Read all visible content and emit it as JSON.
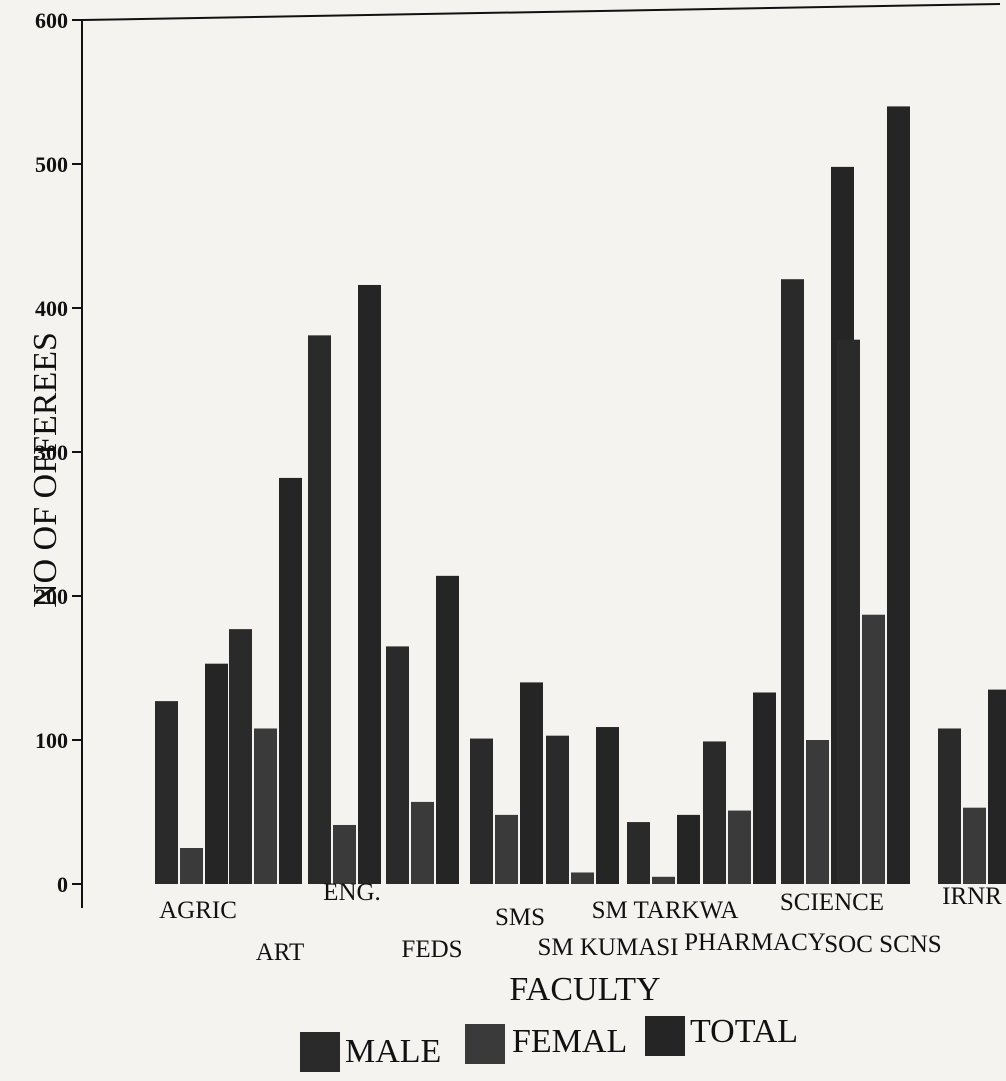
{
  "chart_data": {
    "type": "bar",
    "xlabel": "FACULTY",
    "ylabel": "NO OF OFFEREES",
    "ylim": [
      0,
      600
    ],
    "yticks": [
      0,
      100,
      200,
      300,
      400,
      500,
      600
    ],
    "grid": false,
    "legend_position": "bottom",
    "categories": [
      "AGRIC",
      "ART",
      "ENG.",
      "FEDS",
      "SMS",
      "SM KUMASI",
      "SM TARKWA",
      "PHARMACY",
      "SCIENCE",
      "SOC SCNS",
      "IRNR"
    ],
    "tick_labels": [
      "AGRIC",
      "ART",
      "ENG.",
      "FEDS",
      "SMS",
      "SM KUMASI",
      "SM TARKWA",
      "PHARMACY",
      "SCIENCE",
      "SOC SCNS",
      "IRNR"
    ],
    "series": [
      {
        "name": "MALE",
        "color": "#2a2a2a",
        "values": [
          127,
          177,
          381,
          165,
          101,
          103,
          43,
          99,
          420,
          378,
          108
        ]
      },
      {
        "name": "FEMAL",
        "color": "#3a3a3a",
        "values": [
          25,
          108,
          41,
          57,
          48,
          8,
          5,
          51,
          100,
          187,
          53
        ]
      },
      {
        "name": "TOTAL",
        "color": "#252525",
        "values": [
          153,
          282,
          416,
          214,
          140,
          109,
          48,
          133,
          498,
          540,
          135
        ]
      }
    ]
  }
}
